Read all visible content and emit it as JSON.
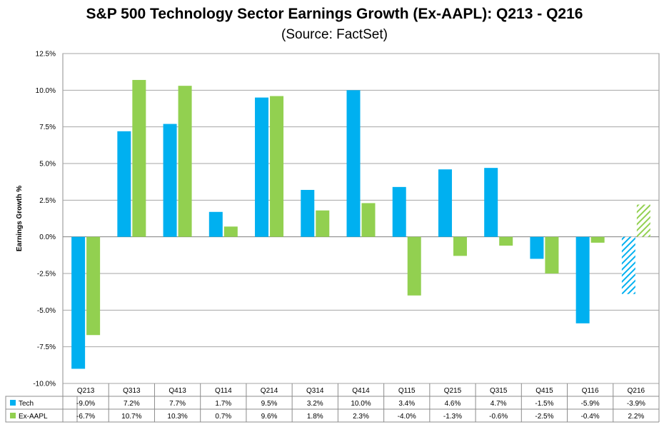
{
  "chart_data": {
    "type": "bar",
    "title": "S&P 500 Technology Sector Earnings Growth (Ex-AAPL): Q213 - Q216",
    "subtitle": "(Source: FactSet)",
    "ylabel": "Earnings Growth %",
    "xlabel": "",
    "ylim": [
      -10,
      12.5
    ],
    "yticks": [
      "12.5%",
      "10.0%",
      "7.5%",
      "5.0%",
      "2.5%",
      "0.0%",
      "-2.5%",
      "-5.0%",
      "-7.5%",
      "-10.0%"
    ],
    "ytick_values": [
      12.5,
      10,
      7.5,
      5,
      2.5,
      0,
      -2.5,
      -5,
      -7.5,
      -10
    ],
    "grid": true,
    "legend": "data-table",
    "categories": [
      "Q213",
      "Q313",
      "Q413",
      "Q114",
      "Q214",
      "Q314",
      "Q414",
      "Q115",
      "Q215",
      "Q315",
      "Q415",
      "Q116",
      "Q216"
    ],
    "series": [
      {
        "name": "Tech",
        "color": "#00B0F0",
        "values": [
          -9.0,
          7.2,
          7.7,
          1.7,
          9.5,
          3.2,
          10.0,
          3.4,
          4.6,
          4.7,
          -1.5,
          -5.9,
          -3.9
        ],
        "labels": [
          "-9.0%",
          "7.2%",
          "7.7%",
          "1.7%",
          "9.5%",
          "3.2%",
          "10.0%",
          "3.4%",
          "4.6%",
          "4.7%",
          "-1.5%",
          "-5.9%",
          "-3.9%"
        ]
      },
      {
        "name": "Ex-AAPL",
        "color": "#92D050",
        "values": [
          -6.7,
          10.7,
          10.3,
          0.7,
          9.6,
          1.8,
          2.3,
          -4.0,
          -1.3,
          -0.6,
          -2.5,
          -0.4,
          2.2
        ],
        "labels": [
          "-6.7%",
          "10.7%",
          "10.3%",
          "0.7%",
          "9.6%",
          "1.8%",
          "2.3%",
          "-4.0%",
          "-1.3%",
          "-0.6%",
          "-2.5%",
          "-0.4%",
          "2.2%"
        ]
      }
    ],
    "estimate_categories": [
      "Q216"
    ]
  }
}
